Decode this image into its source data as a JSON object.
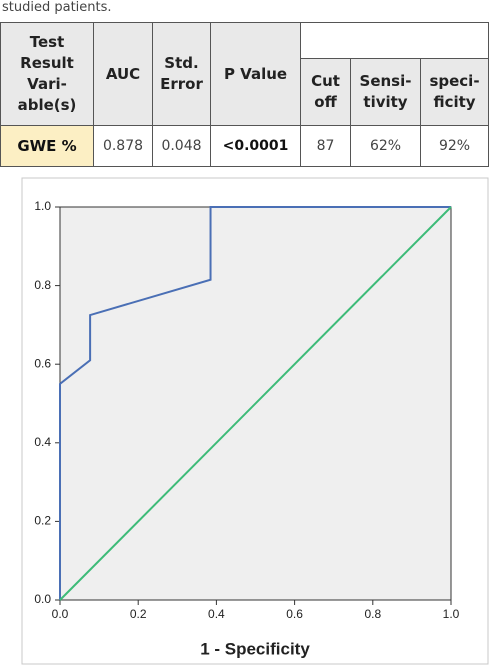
{
  "caption": "studied patients.",
  "table": {
    "header": [
      "Test Result Vari- able(s)",
      "AUC",
      "Std. Error",
      "P Value",
      "Cut off",
      "Sensi- tivity",
      "speci- ficity"
    ],
    "rows": [
      [
        "GWE %",
        "0.878",
        "0.048",
        "<0.0001",
        "87",
        "62%",
        "92%"
      ]
    ]
  },
  "chart_data": {
    "type": "line",
    "xlabel": "1 - Specificity",
    "series": [
      {
        "color": "#4a6fb5",
        "x": [
          0,
          0,
          0.077,
          0.077,
          0.385,
          0.385,
          1
        ],
        "values": [
          0,
          0.55,
          0.61,
          0.725,
          0.815,
          1,
          1
        ]
      },
      {
        "color": "#3dbb78",
        "x": [
          0,
          1
        ],
        "values": [
          0,
          1
        ]
      }
    ],
    "xlim": [
      0,
      1
    ],
    "ylim": [
      0,
      1
    ],
    "xticks": [
      {
        "value": 0,
        "label": "0.0"
      },
      0.2,
      0.4,
      0.6,
      0.8,
      {
        "value": 1,
        "label": "1.0"
      }
    ],
    "yticks": [
      {
        "value": 0,
        "label": "0.0"
      },
      0.2,
      0.4,
      0.6,
      0.8,
      {
        "value": 1,
        "label": "1.0"
      }
    ]
  }
}
